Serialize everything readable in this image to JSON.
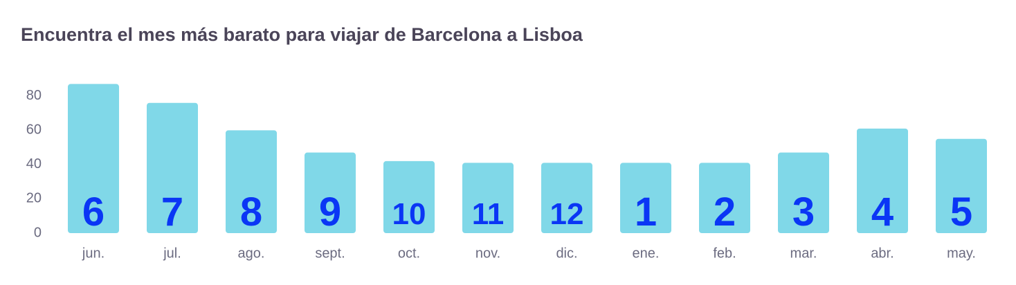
{
  "chart_data": {
    "type": "bar",
    "title": "Encuentra el mes más barato para viajar de Barcelona a Lisboa",
    "categories": [
      "jun.",
      "jul.",
      "ago.",
      "sept.",
      "oct.",
      "nov.",
      "dic.",
      "ene.",
      "feb.",
      "mar.",
      "abr.",
      "may."
    ],
    "values": [
      87,
      76,
      60,
      47,
      42,
      41,
      41,
      41,
      41,
      47,
      61,
      55
    ],
    "annotations": [
      "6",
      "7",
      "8",
      "9",
      "10",
      "11",
      "12",
      "1",
      "2",
      "3",
      "4",
      "5"
    ],
    "color": "#80d8e8",
    "annotation_color": "#0a36f5",
    "ylim": [
      0,
      90
    ],
    "yticks": [
      0,
      20,
      40,
      60,
      80
    ],
    "grid": false
  }
}
